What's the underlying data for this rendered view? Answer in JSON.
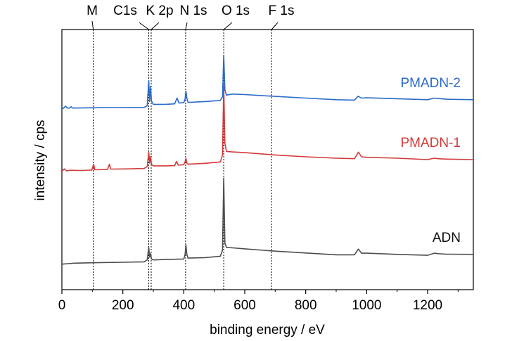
{
  "chart_data": {
    "type": "line",
    "title": "",
    "xlabel": "binding energy / eV",
    "ylabel": "intensity / cps",
    "xlim": [
      0,
      1350
    ],
    "x_ticks": [
      0,
      200,
      400,
      600,
      800,
      1000,
      1200
    ],
    "x_tick_labels": [
      "0",
      "200",
      "400",
      "600",
      "800",
      "1000",
      "1200"
    ],
    "y_ticks_shown": false,
    "grid": false,
    "legend": "none; series names written next to the traces",
    "peak_markers": [
      {
        "label": "M",
        "x": 103
      },
      {
        "label": "C1s",
        "x": 285
      },
      {
        "label": "K 2p",
        "x": 293
      },
      {
        "label": "N 1s",
        "x": 406
      },
      {
        "label": "O 1s",
        "x": 531
      },
      {
        "label": "F 1s",
        "x": 688
      }
    ],
    "series": [
      {
        "name": "PMADN-2",
        "color": "#2a6ac8",
        "points": [
          [
            0,
            0.28
          ],
          [
            5,
            0.281
          ],
          [
            12,
            0.29
          ],
          [
            18,
            0.282
          ],
          [
            25,
            0.282
          ],
          [
            30,
            0.288
          ],
          [
            35,
            0.282
          ],
          [
            100,
            0.283
          ],
          [
            150,
            0.284
          ],
          [
            200,
            0.284
          ],
          [
            270,
            0.285
          ],
          [
            280,
            0.292
          ],
          [
            285,
            0.4
          ],
          [
            288,
            0.31
          ],
          [
            291,
            0.375
          ],
          [
            294,
            0.312
          ],
          [
            300,
            0.298
          ],
          [
            340,
            0.298
          ],
          [
            370,
            0.3
          ],
          [
            378,
            0.325
          ],
          [
            384,
            0.304
          ],
          [
            400,
            0.305
          ],
          [
            404,
            0.32
          ],
          [
            407,
            0.355
          ],
          [
            410,
            0.325
          ],
          [
            414,
            0.306
          ],
          [
            470,
            0.31
          ],
          [
            520,
            0.315
          ],
          [
            527,
            0.33
          ],
          [
            531,
            0.51
          ],
          [
            535,
            0.36
          ],
          [
            540,
            0.338
          ],
          [
            560,
            0.342
          ],
          [
            600,
            0.34
          ],
          [
            700,
            0.332
          ],
          [
            800,
            0.325
          ],
          [
            900,
            0.318
          ],
          [
            960,
            0.316
          ],
          [
            972,
            0.333
          ],
          [
            982,
            0.325
          ],
          [
            1000,
            0.326
          ],
          [
            1100,
            0.322
          ],
          [
            1200,
            0.318
          ],
          [
            1222,
            0.325
          ],
          [
            1235,
            0.323
          ],
          [
            1260,
            0.32
          ],
          [
            1350,
            0.318
          ]
        ]
      },
      {
        "name": "PMADN-1",
        "color": "#d23a3a",
        "points": [
          [
            0,
            0.01
          ],
          [
            8,
            0.02
          ],
          [
            15,
            0.012
          ],
          [
            30,
            0.014
          ],
          [
            60,
            0.013
          ],
          [
            98,
            0.015
          ],
          [
            104,
            0.04
          ],
          [
            108,
            0.016
          ],
          [
            150,
            0.018
          ],
          [
            156,
            0.04
          ],
          [
            160,
            0.019
          ],
          [
            220,
            0.02
          ],
          [
            270,
            0.022
          ],
          [
            280,
            0.03
          ],
          [
            285,
            0.092
          ],
          [
            288,
            0.045
          ],
          [
            291,
            0.072
          ],
          [
            294,
            0.04
          ],
          [
            300,
            0.033
          ],
          [
            340,
            0.033
          ],
          [
            370,
            0.034
          ],
          [
            376,
            0.052
          ],
          [
            382,
            0.036
          ],
          [
            400,
            0.038
          ],
          [
            404,
            0.05
          ],
          [
            407,
            0.065
          ],
          [
            410,
            0.045
          ],
          [
            414,
            0.04
          ],
          [
            470,
            0.044
          ],
          [
            520,
            0.05
          ],
          [
            527,
            0.08
          ],
          [
            531,
            0.38
          ],
          [
            535,
            0.13
          ],
          [
            540,
            0.095
          ],
          [
            560,
            0.093
          ],
          [
            600,
            0.09
          ],
          [
            700,
            0.08
          ],
          [
            800,
            0.072
          ],
          [
            900,
            0.066
          ],
          [
            960,
            0.064
          ],
          [
            973,
            0.092
          ],
          [
            983,
            0.072
          ],
          [
            1000,
            0.07
          ],
          [
            1100,
            0.066
          ],
          [
            1200,
            0.06
          ],
          [
            1222,
            0.066
          ],
          [
            1235,
            0.064
          ],
          [
            1260,
            0.062
          ],
          [
            1350,
            0.06
          ]
        ]
      },
      {
        "name": "ADN",
        "color": "#4d4d4d",
        "points": [
          [
            0,
            -0.39
          ],
          [
            20,
            -0.388
          ],
          [
            40,
            -0.386
          ],
          [
            100,
            -0.384
          ],
          [
            200,
            -0.382
          ],
          [
            270,
            -0.38
          ],
          [
            280,
            -0.372
          ],
          [
            285,
            -0.318
          ],
          [
            288,
            -0.36
          ],
          [
            291,
            -0.345
          ],
          [
            294,
            -0.368
          ],
          [
            300,
            -0.372
          ],
          [
            340,
            -0.37
          ],
          [
            400,
            -0.368
          ],
          [
            404,
            -0.35
          ],
          [
            407,
            -0.308
          ],
          [
            410,
            -0.348
          ],
          [
            414,
            -0.364
          ],
          [
            470,
            -0.362
          ],
          [
            520,
            -0.356
          ],
          [
            527,
            -0.33
          ],
          [
            531,
            -0.02
          ],
          [
            535,
            -0.3
          ],
          [
            540,
            -0.318
          ],
          [
            560,
            -0.32
          ],
          [
            600,
            -0.324
          ],
          [
            700,
            -0.334
          ],
          [
            800,
            -0.342
          ],
          [
            900,
            -0.35
          ],
          [
            960,
            -0.35
          ],
          [
            973,
            -0.325
          ],
          [
            983,
            -0.343
          ],
          [
            1000,
            -0.343
          ],
          [
            1100,
            -0.348
          ],
          [
            1200,
            -0.352
          ],
          [
            1222,
            -0.343
          ],
          [
            1235,
            -0.345
          ],
          [
            1260,
            -0.347
          ],
          [
            1350,
            -0.348
          ]
        ]
      }
    ]
  }
}
